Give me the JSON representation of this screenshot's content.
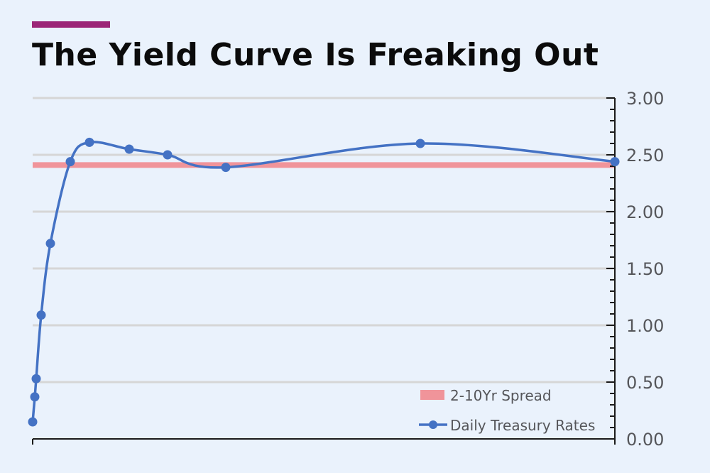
{
  "header": {
    "title": "The Yield Curve Is Freaking Out"
  },
  "colors": {
    "accent": "#9b2677",
    "background": "#eaf2fc",
    "series_line": "#4472c4",
    "spread_line": "#f0949a",
    "gridline": "#d6d6d6",
    "axis": "#1a1a1a",
    "tick_text": "#55565a"
  },
  "chart_data": {
    "type": "line",
    "title": "The Yield Curve Is Freaking Out",
    "xlabel": "",
    "ylabel": "",
    "ylim": [
      0,
      3
    ],
    "xlim": [
      0,
      30
    ],
    "y_axis_side": "right",
    "yticks": [
      0.0,
      0.5,
      1.0,
      1.5,
      2.0,
      2.5,
      3.0
    ],
    "ytick_labels": [
      "0.00",
      "0.50",
      "1.00",
      "1.50",
      "2.00",
      "2.50",
      "3.00"
    ],
    "x_tick_labels_shown": false,
    "grid": true,
    "legend_position": "bottom-right",
    "series": [
      {
        "name": "Daily Treasury Rates",
        "kind": "smooth-line-markers",
        "color": "#4472c4",
        "x": [
          0.0,
          0.08,
          0.17,
          0.5,
          1.0,
          2.0,
          3.0,
          5.0,
          7.0,
          10.0,
          20.0,
          30.0
        ],
        "y": [
          0.15,
          0.37,
          0.53,
          1.09,
          1.72,
          2.44,
          2.61,
          2.55,
          2.5,
          2.39,
          2.6,
          2.44
        ]
      },
      {
        "name": "2-10Yr Spread",
        "kind": "horizontal-band",
        "color": "#f0949a",
        "y": 2.41
      }
    ]
  }
}
